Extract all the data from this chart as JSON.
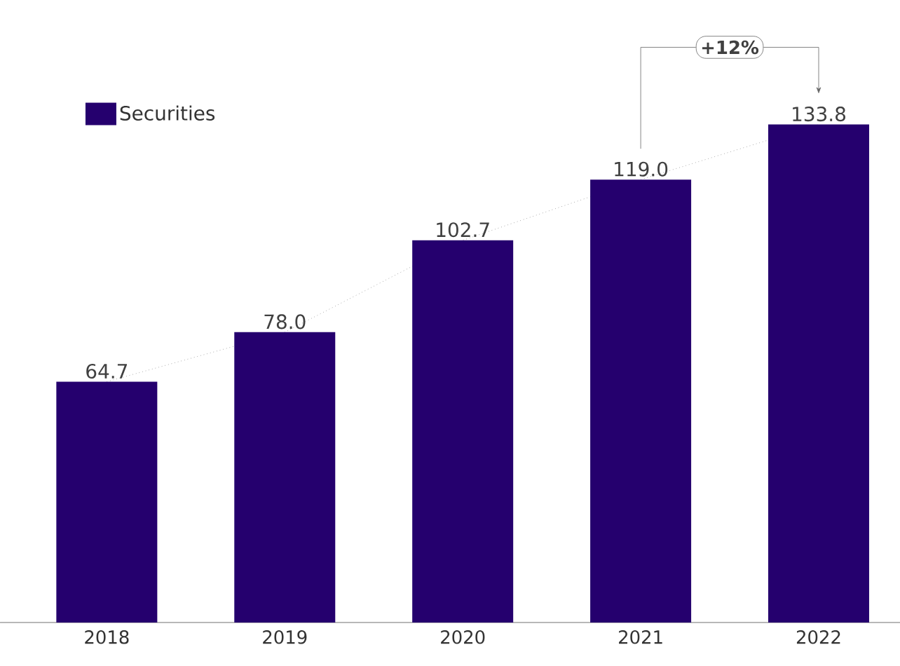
{
  "chart_data": {
    "type": "bar",
    "categories": [
      "2018",
      "2019",
      "2020",
      "2021",
      "2022"
    ],
    "series": [
      {
        "type": "line",
        "color": "#7f7f7f",
        "line_style": "dotted",
        "marker": "none",
        "values": [
          64.7,
          78.0,
          102.7,
          119.0,
          133.8
        ]
      },
      {
        "name": "Securities",
        "color": "#25006e",
        "values": [
          64.7,
          78.0,
          102.7,
          119.0,
          133.8
        ],
        "value_labels": [
          "64.7",
          "78.0",
          "102.7",
          "119.0",
          "133.8"
        ]
      }
    ],
    "legend": "top left",
    "annotations": [
      "+12%"
    ]
  }
}
